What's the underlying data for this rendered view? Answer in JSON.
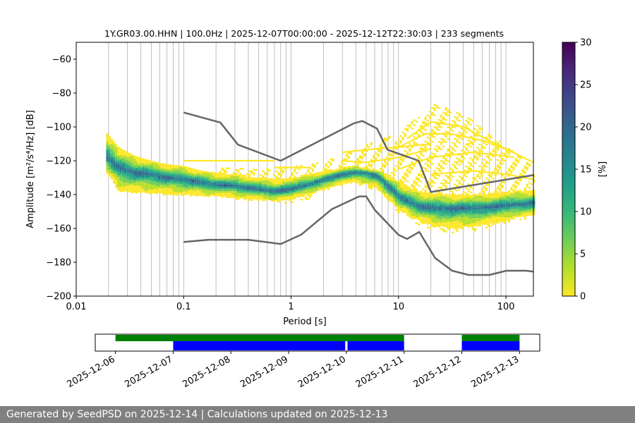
{
  "chart_data": [
    {
      "type": "heatmap",
      "title": "1Y.GR03.00.HHN | 100.0Hz | 2025-12-07T00:00:00 - 2025-12-12T22:30:03 | 233 segments",
      "xlabel": "Period [s]",
      "ylabel": "Amplitude [m²/s⁴/Hz] [dB]",
      "xscale": "log",
      "xlim": [
        0.01,
        180
      ],
      "ylim": [
        -200,
        -50
      ],
      "x_ticks": [
        "0.01",
        "0.1",
        "1",
        "10",
        "100"
      ],
      "x_tick_values": [
        0.01,
        0.1,
        1,
        10,
        100
      ],
      "y_ticks": [
        "−200",
        "−180",
        "−160",
        "−140",
        "−120",
        "−100",
        "−80",
        "−60"
      ],
      "y_tick_values": [
        -200,
        -180,
        -160,
        -140,
        -120,
        -100,
        -80,
        -60
      ],
      "grid_x": true,
      "grid_y": false,
      "colormap": "viridis_r",
      "colorbar": {
        "label": "[%]",
        "min": 0,
        "max": 30,
        "ticks": [
          "0",
          "5",
          "10",
          "15",
          "20",
          "25",
          "30"
        ],
        "tick_values": [
          0,
          5,
          10,
          15,
          20,
          25,
          30
        ],
        "colors": [
          "#fde725",
          "#b5de2b",
          "#6ece58",
          "#35b779",
          "#1f9e89",
          "#26828e",
          "#31688e",
          "#3e4989",
          "#482878",
          "#440154"
        ]
      },
      "mode_curve": {
        "x": [
          0.019,
          0.025,
          0.035,
          0.05,
          0.07,
          0.1,
          0.15,
          0.2,
          0.3,
          0.5,
          0.7,
          1,
          1.5,
          2,
          3,
          4,
          5,
          6,
          7,
          8,
          10,
          13,
          16,
          20,
          30,
          50,
          80,
          120,
          180
        ],
        "y": [
          -118,
          -124,
          -127,
          -128,
          -130,
          -131,
          -133,
          -134,
          -135,
          -137,
          -138,
          -137,
          -134,
          -131,
          -128,
          -127,
          -127,
          -128,
          -131,
          -135,
          -141,
          -145,
          -147,
          -148,
          -148,
          -148,
          -147,
          -146,
          -145
        ]
      },
      "band_upper": {
        "x": [
          0.019,
          0.025,
          0.035,
          0.05,
          0.07,
          0.1,
          0.15,
          0.2,
          0.3,
          0.5,
          0.7,
          1,
          1.5,
          2,
          3,
          4,
          5,
          6,
          7,
          8,
          10,
          13,
          16,
          20,
          30,
          50,
          80,
          120,
          180
        ],
        "y": [
          -103,
          -112,
          -117,
          -120,
          -122,
          -123,
          -126,
          -127,
          -128,
          -130,
          -131,
          -130,
          -128,
          -126,
          -124,
          -123,
          -124,
          -125,
          -126,
          -128,
          -132,
          -136,
          -138,
          -139,
          -140,
          -140,
          -139,
          -138,
          -137
        ]
      },
      "band_lower": {
        "x": [
          0.019,
          0.025,
          0.035,
          0.05,
          0.07,
          0.1,
          0.15,
          0.2,
          0.3,
          0.5,
          0.7,
          1,
          1.5,
          2,
          3,
          4,
          5,
          6,
          7,
          8,
          10,
          13,
          16,
          20,
          30,
          50,
          80,
          120,
          180
        ],
        "y": [
          -126,
          -138,
          -139,
          -139,
          -140,
          -140,
          -141,
          -141,
          -142,
          -143,
          -144,
          -143,
          -140,
          -137,
          -134,
          -133,
          -134,
          -136,
          -139,
          -143,
          -149,
          -153,
          -156,
          -158,
          -160,
          -159,
          -157,
          -154,
          -152
        ]
      },
      "sparse_upper": {
        "x": [
          0.2,
          0.3,
          0.5,
          0.7,
          1,
          1.5,
          2,
          3,
          4,
          5,
          7,
          10,
          15,
          20,
          30,
          50,
          80,
          120,
          180
        ],
        "y": [
          -124,
          -124,
          -125,
          -124,
          -123,
          -122,
          -120,
          -117,
          -113,
          -110,
          -107,
          -103,
          -94,
          -86,
          -89,
          -96,
          -106,
          -115,
          -122
        ]
      },
      "sparse_lower": {
        "x": [
          0.2,
          0.3,
          0.5,
          0.7,
          1,
          1.5,
          2,
          3,
          4,
          5,
          7,
          10,
          15,
          20,
          30,
          50,
          80,
          120,
          180
        ],
        "y": [
          -136,
          -138,
          -141,
          -144,
          -145,
          -142,
          -138,
          -134,
          -134,
          -135,
          -140,
          -150,
          -157,
          -160,
          -162,
          -161,
          -158,
          -155,
          -153
        ]
      },
      "sparse_lines": [
        {
          "x": [
            0.1,
            0.3,
            0.7
          ],
          "y": [
            -120,
            -120,
            -120
          ]
        },
        {
          "x": [
            0.7,
            1.2,
            1.5
          ],
          "y": [
            -124,
            -124,
            -124
          ]
        },
        {
          "x": [
            3,
            5,
            10,
            20
          ],
          "y": [
            -120,
            -121,
            -118,
            -113
          ]
        },
        {
          "x": [
            3,
            6,
            10,
            20
          ],
          "y": [
            -115,
            -113,
            -112,
            -110
          ]
        },
        {
          "x": [
            10,
            18,
            30,
            60,
            120
          ],
          "y": [
            -112,
            -104,
            -104,
            -108,
            -115
          ]
        },
        {
          "x": [
            12,
            20,
            40,
            80,
            180
          ],
          "y": [
            -107,
            -97,
            -100,
            -110,
            -121
          ]
        },
        {
          "x": [
            10,
            20,
            50,
            120
          ],
          "y": [
            -125,
            -118,
            -115,
            -118
          ]
        },
        {
          "x": [
            20,
            50,
            100,
            180
          ],
          "y": [
            -128,
            -126,
            -128,
            -131
          ]
        }
      ],
      "nhnm": {
        "x": [
          0.1,
          0.22,
          0.32,
          0.8,
          3.8,
          4.6,
          6.3,
          7.9,
          15.4,
          20,
          180
        ],
        "y": [
          -91.5,
          -97.4,
          -110.5,
          -120,
          -98,
          -96.5,
          -101,
          -113.5,
          -120,
          -138.5,
          -128.5
        ]
      },
      "nlnm": {
        "x": [
          0.1,
          0.17,
          0.4,
          0.8,
          1.24,
          2.4,
          4.3,
          5,
          6,
          10,
          12,
          15.6,
          21.9,
          31.6,
          45,
          70,
          101,
          154,
          180
        ],
        "y": [
          -168,
          -166.7,
          -166.7,
          -169.2,
          -163.7,
          -148.6,
          -141.1,
          -141.1,
          -149,
          -163.8,
          -166.2,
          -162.1,
          -177.5,
          -185,
          -187.5,
          -187.5,
          -185,
          -185,
          -185.5
        ]
      }
    },
    {
      "type": "timeline",
      "x_ticks": [
        "2025-12-06",
        "2025-12-07",
        "2025-12-08",
        "2025-12-09",
        "2025-12-10",
        "2025-12-11",
        "2025-12-12",
        "2025-12-13"
      ],
      "x_tick_values": [
        0,
        1,
        2,
        3,
        4,
        5,
        6,
        7
      ],
      "xlim": [
        -0.35,
        7.35
      ],
      "green_segments": [
        [
          0,
          5
        ],
        [
          6,
          7
        ]
      ],
      "blue_segments": [
        [
          1,
          3.98
        ],
        [
          4.02,
          5
        ],
        [
          6,
          7
        ]
      ],
      "colors": {
        "green": "#008000",
        "blue": "#0000ff"
      }
    }
  ],
  "footer": {
    "text": "Generated by SeedPSD on 2025-12-14 | Calculations updated on 2025-12-13",
    "background": "#808080"
  }
}
